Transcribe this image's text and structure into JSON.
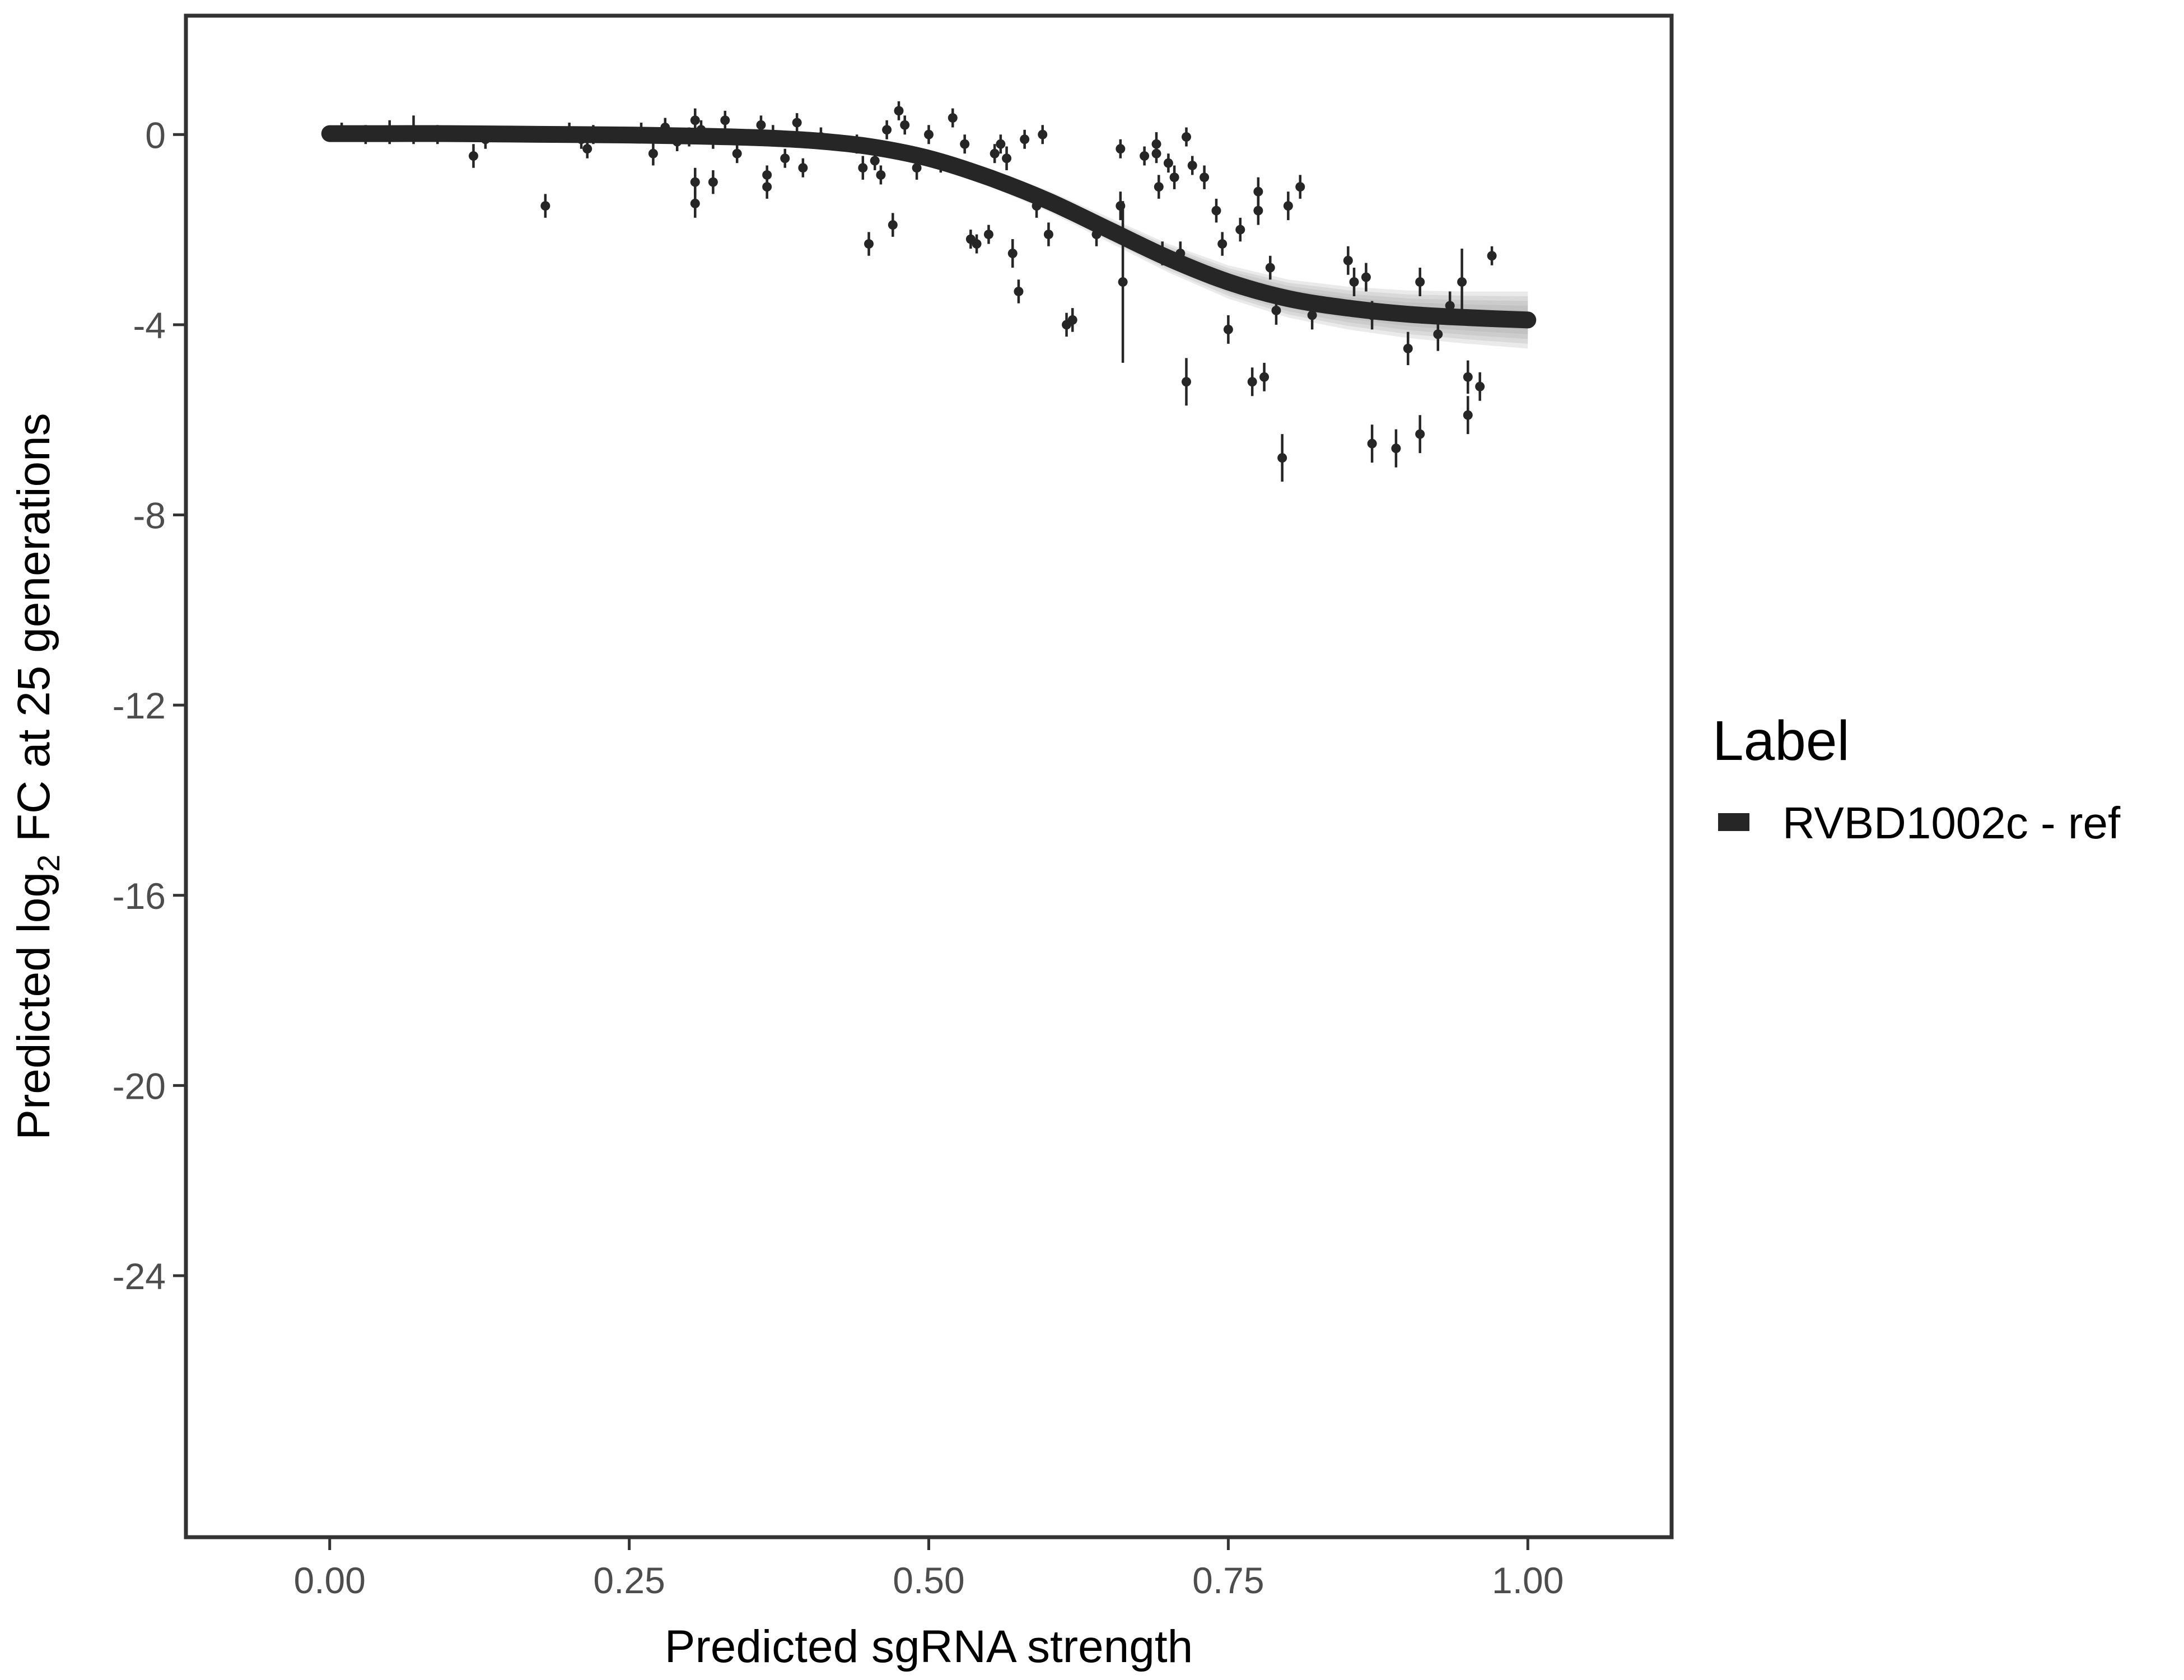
{
  "chart_data": {
    "type": "scatter",
    "xlabel": "Predicted sgRNA strength",
    "ylabel": {
      "prefix": "Predicted  log",
      "subscript": "2",
      "suffix": " FC at 25 generations"
    },
    "xlim": [
      -0.12,
      1.12
    ],
    "ylim": [
      -29.5,
      2.5
    ],
    "x_ticks": [
      0.0,
      0.25,
      0.5,
      0.75,
      1.0
    ],
    "x_tick_labels": [
      "0.00",
      "0.25",
      "0.50",
      "0.75",
      "1.00"
    ],
    "y_ticks": [
      0,
      -4,
      -8,
      -12,
      -16,
      -20,
      -24
    ],
    "y_tick_labels": [
      "0",
      "-4",
      "-8",
      "-12",
      "-16",
      "-20",
      "-24"
    ],
    "grid": false,
    "legend": {
      "title": "Label",
      "position": "right",
      "entries": [
        {
          "label": "RVBD1002c - ref",
          "color": "#262626"
        }
      ]
    },
    "fit_curve": {
      "name": "RVBD1002c - ref",
      "color": "#262626",
      "band_color": "#9e9e9e",
      "x": [
        0.0,
        0.05,
        0.1,
        0.15,
        0.2,
        0.25,
        0.3,
        0.35,
        0.4,
        0.45,
        0.5,
        0.55,
        0.6,
        0.65,
        0.7,
        0.75,
        0.8,
        0.85,
        0.9,
        0.95,
        1.0
      ],
      "y": [
        0.02,
        0.02,
        0.02,
        0.01,
        0.0,
        -0.01,
        -0.03,
        -0.06,
        -0.12,
        -0.25,
        -0.5,
        -0.9,
        -1.4,
        -2.0,
        -2.6,
        -3.1,
        -3.45,
        -3.65,
        -3.78,
        -3.85,
        -3.9
      ],
      "band_halfwidth": [
        0.03,
        0.03,
        0.03,
        0.03,
        0.03,
        0.04,
        0.05,
        0.06,
        0.08,
        0.1,
        0.14,
        0.18,
        0.22,
        0.26,
        0.3,
        0.35,
        0.4,
        0.45,
        0.5,
        0.55,
        0.6
      ]
    },
    "points": [
      {
        "x": 0.01,
        "y": 0.05,
        "e": 0.2
      },
      {
        "x": 0.03,
        "y": 0.0,
        "e": 0.2
      },
      {
        "x": 0.05,
        "y": 0.05,
        "e": 0.25
      },
      {
        "x": 0.07,
        "y": 0.1,
        "e": 0.3
      },
      {
        "x": 0.09,
        "y": 0.0,
        "e": 0.2
      },
      {
        "x": 0.12,
        "y": -0.45,
        "e": 0.25
      },
      {
        "x": 0.13,
        "y": -0.1,
        "e": 0.2
      },
      {
        "x": 0.18,
        "y": -1.5,
        "e": 0.25
      },
      {
        "x": 0.2,
        "y": 0.05,
        "e": 0.2
      },
      {
        "x": 0.21,
        "y": -0.1,
        "e": 0.2
      },
      {
        "x": 0.215,
        "y": -0.3,
        "e": 0.2
      },
      {
        "x": 0.22,
        "y": 0.0,
        "e": 0.2
      },
      {
        "x": 0.26,
        "y": 0.05,
        "e": 0.2
      },
      {
        "x": 0.27,
        "y": -0.4,
        "e": 0.25
      },
      {
        "x": 0.28,
        "y": 0.15,
        "e": 0.2
      },
      {
        "x": 0.29,
        "y": -0.15,
        "e": 0.2
      },
      {
        "x": 0.3,
        "y": -0.05,
        "e": 0.2
      },
      {
        "x": 0.305,
        "y": 0.3,
        "e": 0.25
      },
      {
        "x": 0.305,
        "y": -1.0,
        "e": 0.3
      },
      {
        "x": 0.305,
        "y": -1.45,
        "e": 0.3
      },
      {
        "x": 0.31,
        "y": 0.1,
        "e": 0.2
      },
      {
        "x": 0.32,
        "y": -0.1,
        "e": 0.2
      },
      {
        "x": 0.32,
        "y": -1.0,
        "e": 0.25
      },
      {
        "x": 0.33,
        "y": 0.3,
        "e": 0.2
      },
      {
        "x": 0.34,
        "y": -0.4,
        "e": 0.2
      },
      {
        "x": 0.36,
        "y": 0.2,
        "e": 0.2
      },
      {
        "x": 0.365,
        "y": -0.85,
        "e": 0.2
      },
      {
        "x": 0.365,
        "y": -1.1,
        "e": 0.25
      },
      {
        "x": 0.37,
        "y": 0.0,
        "e": 0.2
      },
      {
        "x": 0.38,
        "y": -0.5,
        "e": 0.2
      },
      {
        "x": 0.39,
        "y": 0.25,
        "e": 0.2
      },
      {
        "x": 0.395,
        "y": -0.7,
        "e": 0.2
      },
      {
        "x": 0.41,
        "y": -0.05,
        "e": 0.2
      },
      {
        "x": 0.44,
        "y": -0.2,
        "e": 0.2
      },
      {
        "x": 0.445,
        "y": -0.7,
        "e": 0.25
      },
      {
        "x": 0.45,
        "y": -2.3,
        "e": 0.25
      },
      {
        "x": 0.455,
        "y": -0.55,
        "e": 0.2
      },
      {
        "x": 0.46,
        "y": -0.85,
        "e": 0.2
      },
      {
        "x": 0.465,
        "y": 0.1,
        "e": 0.2
      },
      {
        "x": 0.47,
        "y": -1.9,
        "e": 0.25
      },
      {
        "x": 0.475,
        "y": 0.5,
        "e": 0.2
      },
      {
        "x": 0.48,
        "y": 0.2,
        "e": 0.2
      },
      {
        "x": 0.49,
        "y": -0.7,
        "e": 0.25
      },
      {
        "x": 0.5,
        "y": 0.0,
        "e": 0.2
      },
      {
        "x": 0.51,
        "y": -0.6,
        "e": 0.2
      },
      {
        "x": 0.52,
        "y": 0.35,
        "e": 0.2
      },
      {
        "x": 0.53,
        "y": -0.2,
        "e": 0.2
      },
      {
        "x": 0.535,
        "y": -2.2,
        "e": 0.2
      },
      {
        "x": 0.54,
        "y": -2.3,
        "e": 0.2
      },
      {
        "x": 0.55,
        "y": -2.1,
        "e": 0.2
      },
      {
        "x": 0.555,
        "y": -0.4,
        "e": 0.2
      },
      {
        "x": 0.56,
        "y": -0.2,
        "e": 0.2
      },
      {
        "x": 0.565,
        "y": -0.5,
        "e": 0.25
      },
      {
        "x": 0.57,
        "y": -2.5,
        "e": 0.3
      },
      {
        "x": 0.575,
        "y": -3.3,
        "e": 0.25
      },
      {
        "x": 0.58,
        "y": -0.1,
        "e": 0.2
      },
      {
        "x": 0.59,
        "y": -1.5,
        "e": 0.25
      },
      {
        "x": 0.595,
        "y": 0.0,
        "e": 0.2
      },
      {
        "x": 0.6,
        "y": -2.1,
        "e": 0.25
      },
      {
        "x": 0.615,
        "y": -4.0,
        "e": 0.25
      },
      {
        "x": 0.62,
        "y": -3.9,
        "e": 0.25
      },
      {
        "x": 0.64,
        "y": -2.1,
        "e": 0.25
      },
      {
        "x": 0.66,
        "y": -0.3,
        "e": 0.2
      },
      {
        "x": 0.66,
        "y": -1.5,
        "e": 0.3
      },
      {
        "x": 0.662,
        "y": -3.1,
        "e": 1.7
      },
      {
        "x": 0.68,
        "y": -0.45,
        "e": 0.2
      },
      {
        "x": 0.69,
        "y": -0.2,
        "e": 0.25
      },
      {
        "x": 0.69,
        "y": -0.4,
        "e": 0.2
      },
      {
        "x": 0.692,
        "y": -1.1,
        "e": 0.25
      },
      {
        "x": 0.695,
        "y": -2.5,
        "e": 0.25
      },
      {
        "x": 0.7,
        "y": -0.6,
        "e": 0.2
      },
      {
        "x": 0.705,
        "y": -0.9,
        "e": 0.25
      },
      {
        "x": 0.71,
        "y": -2.5,
        "e": 0.25
      },
      {
        "x": 0.715,
        "y": -5.2,
        "e": 0.5
      },
      {
        "x": 0.715,
        "y": -0.05,
        "e": 0.2
      },
      {
        "x": 0.72,
        "y": -0.65,
        "e": 0.2
      },
      {
        "x": 0.73,
        "y": -0.9,
        "e": 0.25
      },
      {
        "x": 0.74,
        "y": -1.6,
        "e": 0.25
      },
      {
        "x": 0.745,
        "y": -2.3,
        "e": 0.25
      },
      {
        "x": 0.75,
        "y": -4.1,
        "e": 0.3
      },
      {
        "x": 0.76,
        "y": -2.0,
        "e": 0.25
      },
      {
        "x": 0.77,
        "y": -5.2,
        "e": 0.3
      },
      {
        "x": 0.775,
        "y": -1.2,
        "e": 0.3
      },
      {
        "x": 0.775,
        "y": -1.6,
        "e": 0.3
      },
      {
        "x": 0.78,
        "y": -5.1,
        "e": 0.3
      },
      {
        "x": 0.785,
        "y": -2.8,
        "e": 0.25
      },
      {
        "x": 0.79,
        "y": -3.7,
        "e": 0.3
      },
      {
        "x": 0.795,
        "y": -6.8,
        "e": 0.5
      },
      {
        "x": 0.8,
        "y": -1.5,
        "e": 0.3
      },
      {
        "x": 0.81,
        "y": -1.1,
        "e": 0.25
      },
      {
        "x": 0.82,
        "y": -3.8,
        "e": 0.3
      },
      {
        "x": 0.85,
        "y": -2.65,
        "e": 0.3
      },
      {
        "x": 0.855,
        "y": -3.1,
        "e": 0.3
      },
      {
        "x": 0.865,
        "y": -3.0,
        "e": 0.3
      },
      {
        "x": 0.87,
        "y": -6.5,
        "e": 0.4
      },
      {
        "x": 0.87,
        "y": -3.8,
        "e": 0.3
      },
      {
        "x": 0.89,
        "y": -6.6,
        "e": 0.4
      },
      {
        "x": 0.9,
        "y": -4.5,
        "e": 0.35
      },
      {
        "x": 0.91,
        "y": -3.1,
        "e": 0.3
      },
      {
        "x": 0.91,
        "y": -6.3,
        "e": 0.4
      },
      {
        "x": 0.925,
        "y": -4.2,
        "e": 0.35
      },
      {
        "x": 0.935,
        "y": -3.6,
        "e": 0.3
      },
      {
        "x": 0.945,
        "y": -3.1,
        "e": 0.7
      },
      {
        "x": 0.95,
        "y": -5.1,
        "e": 0.35
      },
      {
        "x": 0.95,
        "y": -5.9,
        "e": 0.4
      },
      {
        "x": 0.96,
        "y": -5.3,
        "e": 0.3
      },
      {
        "x": 0.97,
        "y": -2.55,
        "e": 0.2
      }
    ]
  }
}
